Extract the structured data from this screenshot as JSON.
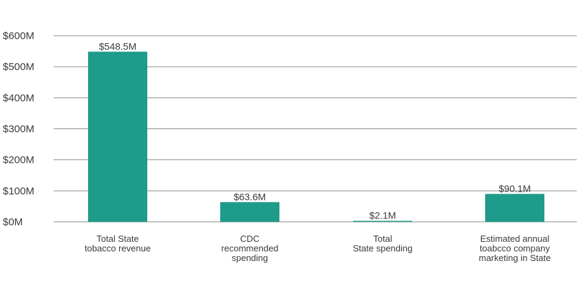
{
  "chart_data": {
    "type": "bar",
    "title": "",
    "xlabel": "",
    "ylabel": "",
    "ylim": [
      0,
      600
    ],
    "y_ticks": [
      {
        "value": 0,
        "label": "$0M"
      },
      {
        "value": 100,
        "label": "$100M"
      },
      {
        "value": 200,
        "label": "$200M"
      },
      {
        "value": 300,
        "label": "$300M"
      },
      {
        "value": 400,
        "label": "$400M"
      },
      {
        "value": 500,
        "label": "$500M"
      },
      {
        "value": 600,
        "label": "$600M"
      }
    ],
    "grid": true,
    "bar_color": "#1e9b8a",
    "categories": [
      [
        "Total State",
        "tobacco revenue"
      ],
      [
        "CDC",
        "recommended",
        "spending"
      ],
      [
        "Total",
        "State spending"
      ],
      [
        "Estimated annual",
        "toabcco company",
        "marketing in State"
      ]
    ],
    "values": [
      548.5,
      63.6,
      2.1,
      90.1
    ],
    "data_labels": [
      "$548.5M",
      "$63.6M",
      "$2.1M",
      "$90.1M"
    ]
  }
}
